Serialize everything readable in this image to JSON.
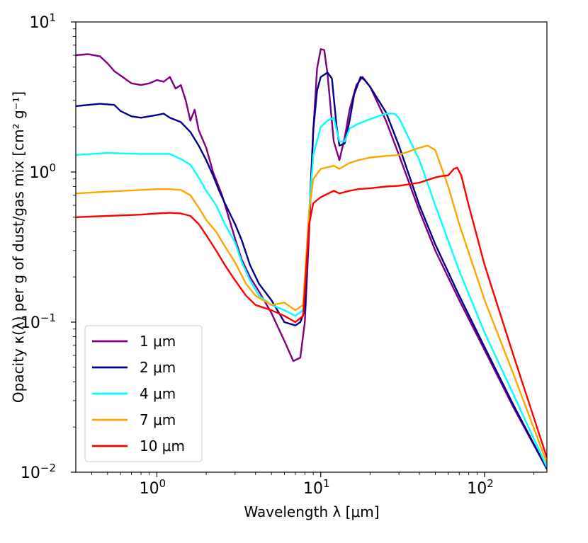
{
  "chart_data": {
    "type": "line",
    "xscale": "log",
    "yscale": "log",
    "xlabel": "Wavelength λ [μm]",
    "ylabel": "Opacity κ(λ) per g of dust/gas mix [cm² g⁻¹]",
    "xlim": [
      0.32,
      240
    ],
    "ylim": [
      0.01,
      10
    ],
    "x_ticks": [
      {
        "value": 1,
        "base": "10",
        "exp": "0"
      },
      {
        "value": 10,
        "base": "10",
        "exp": "1"
      },
      {
        "value": 100,
        "base": "10",
        "exp": "2"
      }
    ],
    "y_ticks": [
      {
        "value": 0.01,
        "base": "10",
        "exp": "−2"
      },
      {
        "value": 0.1,
        "base": "10",
        "exp": "−1"
      },
      {
        "value": 1,
        "base": "10",
        "exp": "0"
      },
      {
        "value": 10,
        "base": "10",
        "exp": "1"
      }
    ],
    "legend_position": "lower-left",
    "series": [
      {
        "name": "1 μm",
        "color": "#800080",
        "points": [
          [
            0.32,
            6.0
          ],
          [
            0.38,
            6.1
          ],
          [
            0.45,
            5.9
          ],
          [
            0.5,
            5.3
          ],
          [
            0.55,
            4.7
          ],
          [
            0.6,
            4.4
          ],
          [
            0.7,
            3.9
          ],
          [
            0.8,
            3.8
          ],
          [
            0.9,
            3.9
          ],
          [
            1.0,
            4.1
          ],
          [
            1.1,
            4.0
          ],
          [
            1.2,
            4.3
          ],
          [
            1.3,
            3.6
          ],
          [
            1.4,
            3.8
          ],
          [
            1.5,
            3.0
          ],
          [
            1.6,
            2.2
          ],
          [
            1.7,
            2.6
          ],
          [
            1.8,
            1.9
          ],
          [
            2.0,
            1.45
          ],
          [
            2.2,
            1.0
          ],
          [
            2.5,
            0.7
          ],
          [
            3.0,
            0.36
          ],
          [
            3.3,
            0.26
          ],
          [
            3.7,
            0.2
          ],
          [
            4.2,
            0.16
          ],
          [
            5.0,
            0.115
          ],
          [
            6.0,
            0.075
          ],
          [
            6.8,
            0.055
          ],
          [
            7.5,
            0.058
          ],
          [
            8.0,
            0.1
          ],
          [
            8.5,
            0.4
          ],
          [
            9.0,
            1.9
          ],
          [
            9.5,
            4.9
          ],
          [
            10.0,
            6.6
          ],
          [
            10.5,
            6.5
          ],
          [
            11.0,
            4.5
          ],
          [
            12.0,
            1.6
          ],
          [
            13.0,
            1.2
          ],
          [
            14.0,
            1.7
          ],
          [
            15.0,
            2.6
          ],
          [
            16.5,
            3.8
          ],
          [
            18.0,
            4.3
          ],
          [
            20.0,
            3.7
          ],
          [
            25.0,
            2.2
          ],
          [
            30.0,
            1.3
          ],
          [
            40.0,
            0.55
          ],
          [
            50.0,
            0.3
          ],
          [
            70.0,
            0.14
          ],
          [
            100.0,
            0.065
          ],
          [
            150.0,
            0.027
          ],
          [
            240.0,
            0.0105
          ]
        ]
      },
      {
        "name": "2 μm",
        "color": "#00008B",
        "points": [
          [
            0.32,
            2.75
          ],
          [
            0.45,
            2.85
          ],
          [
            0.55,
            2.8
          ],
          [
            0.6,
            2.55
          ],
          [
            0.7,
            2.35
          ],
          [
            0.8,
            2.3
          ],
          [
            1.0,
            2.4
          ],
          [
            1.1,
            2.45
          ],
          [
            1.2,
            2.3
          ],
          [
            1.4,
            2.15
          ],
          [
            1.6,
            1.85
          ],
          [
            1.8,
            1.5
          ],
          [
            2.0,
            1.2
          ],
          [
            2.2,
            0.95
          ],
          [
            2.4,
            0.75
          ],
          [
            2.6,
            0.62
          ],
          [
            3.0,
            0.45
          ],
          [
            3.3,
            0.35
          ],
          [
            3.7,
            0.24
          ],
          [
            4.2,
            0.18
          ],
          [
            5.0,
            0.14
          ],
          [
            6.0,
            0.1
          ],
          [
            7.0,
            0.095
          ],
          [
            7.5,
            0.1
          ],
          [
            8.0,
            0.12
          ],
          [
            8.5,
            0.5
          ],
          [
            9.0,
            1.9
          ],
          [
            9.5,
            3.5
          ],
          [
            10.0,
            4.3
          ],
          [
            11.0,
            4.6
          ],
          [
            11.7,
            4.2
          ],
          [
            12.5,
            2.0
          ],
          [
            13.0,
            1.5
          ],
          [
            14.0,
            1.55
          ],
          [
            15.0,
            2.2
          ],
          [
            16.0,
            3.3
          ],
          [
            17.5,
            4.3
          ],
          [
            18.5,
            4.1
          ],
          [
            20.0,
            3.7
          ],
          [
            25.0,
            2.5
          ],
          [
            30.0,
            1.5
          ],
          [
            40.0,
            0.6
          ],
          [
            50.0,
            0.33
          ],
          [
            70.0,
            0.15
          ],
          [
            100.0,
            0.068
          ],
          [
            150.0,
            0.028
          ],
          [
            240.0,
            0.0105
          ]
        ]
      },
      {
        "name": "4 μm",
        "color": "#00FFFF",
        "points": [
          [
            0.32,
            1.3
          ],
          [
            0.5,
            1.34
          ],
          [
            0.8,
            1.32
          ],
          [
            1.0,
            1.32
          ],
          [
            1.2,
            1.32
          ],
          [
            1.4,
            1.22
          ],
          [
            1.6,
            1.12
          ],
          [
            1.8,
            0.92
          ],
          [
            2.0,
            0.75
          ],
          [
            2.3,
            0.6
          ],
          [
            2.6,
            0.45
          ],
          [
            3.0,
            0.34
          ],
          [
            3.3,
            0.25
          ],
          [
            3.7,
            0.19
          ],
          [
            4.2,
            0.15
          ],
          [
            5.0,
            0.13
          ],
          [
            6.0,
            0.12
          ],
          [
            7.0,
            0.11
          ],
          [
            7.8,
            0.12
          ],
          [
            8.5,
            0.55
          ],
          [
            9.0,
            1.3
          ],
          [
            10.0,
            2.0
          ],
          [
            11.0,
            2.2
          ],
          [
            12.0,
            2.3
          ],
          [
            12.5,
            1.9
          ],
          [
            13.0,
            1.6
          ],
          [
            14.0,
            1.6
          ],
          [
            15.0,
            1.95
          ],
          [
            17.0,
            2.1
          ],
          [
            20.0,
            2.25
          ],
          [
            25.0,
            2.45
          ],
          [
            28.0,
            2.45
          ],
          [
            30.0,
            2.3
          ],
          [
            40.0,
            1.2
          ],
          [
            50.0,
            0.6
          ],
          [
            70.0,
            0.22
          ],
          [
            100.0,
            0.085
          ],
          [
            150.0,
            0.033
          ],
          [
            240.0,
            0.0108
          ]
        ]
      },
      {
        "name": "7 μm",
        "color": "#FFA500",
        "points": [
          [
            0.32,
            0.72
          ],
          [
            0.5,
            0.74
          ],
          [
            0.8,
            0.76
          ],
          [
            1.0,
            0.77
          ],
          [
            1.2,
            0.77
          ],
          [
            1.4,
            0.76
          ],
          [
            1.6,
            0.7
          ],
          [
            1.8,
            0.58
          ],
          [
            2.0,
            0.48
          ],
          [
            2.3,
            0.4
          ],
          [
            2.6,
            0.32
          ],
          [
            3.0,
            0.25
          ],
          [
            3.5,
            0.18
          ],
          [
            4.0,
            0.15
          ],
          [
            5.0,
            0.13
          ],
          [
            6.0,
            0.135
          ],
          [
            7.0,
            0.12
          ],
          [
            7.8,
            0.13
          ],
          [
            8.5,
            0.55
          ],
          [
            9.0,
            0.9
          ],
          [
            10.0,
            1.05
          ],
          [
            12.0,
            1.1
          ],
          [
            13.0,
            1.05
          ],
          [
            15.0,
            1.15
          ],
          [
            17.0,
            1.2
          ],
          [
            20.0,
            1.25
          ],
          [
            25.0,
            1.28
          ],
          [
            30.0,
            1.3
          ],
          [
            40.0,
            1.45
          ],
          [
            45.0,
            1.5
          ],
          [
            50.0,
            1.4
          ],
          [
            60.0,
            0.8
          ],
          [
            70.0,
            0.45
          ],
          [
            100.0,
            0.14
          ],
          [
            150.0,
            0.045
          ],
          [
            240.0,
            0.0115
          ]
        ]
      },
      {
        "name": "10 μm",
        "color": "#FF0000",
        "points": [
          [
            0.32,
            0.5
          ],
          [
            0.5,
            0.51
          ],
          [
            0.8,
            0.52
          ],
          [
            1.0,
            0.53
          ],
          [
            1.2,
            0.535
          ],
          [
            1.4,
            0.53
          ],
          [
            1.6,
            0.51
          ],
          [
            1.8,
            0.45
          ],
          [
            2.0,
            0.38
          ],
          [
            2.3,
            0.3
          ],
          [
            2.6,
            0.24
          ],
          [
            3.0,
            0.19
          ],
          [
            3.5,
            0.15
          ],
          [
            4.0,
            0.13
          ],
          [
            5.0,
            0.12
          ],
          [
            6.0,
            0.11
          ],
          [
            7.0,
            0.1
          ],
          [
            7.8,
            0.11
          ],
          [
            8.5,
            0.45
          ],
          [
            9.0,
            0.62
          ],
          [
            10.0,
            0.68
          ],
          [
            12.0,
            0.75
          ],
          [
            13.0,
            0.72
          ],
          [
            15.0,
            0.75
          ],
          [
            17.0,
            0.77
          ],
          [
            20.0,
            0.78
          ],
          [
            25.0,
            0.8
          ],
          [
            30.0,
            0.81
          ],
          [
            40.0,
            0.85
          ],
          [
            50.0,
            0.92
          ],
          [
            55.0,
            0.94
          ],
          [
            60.0,
            0.95
          ],
          [
            65.0,
            1.05
          ],
          [
            68.0,
            1.07
          ],
          [
            72.0,
            0.95
          ],
          [
            80.0,
            0.6
          ],
          [
            100.0,
            0.24
          ],
          [
            150.0,
            0.06
          ],
          [
            240.0,
            0.0125
          ]
        ]
      }
    ]
  }
}
